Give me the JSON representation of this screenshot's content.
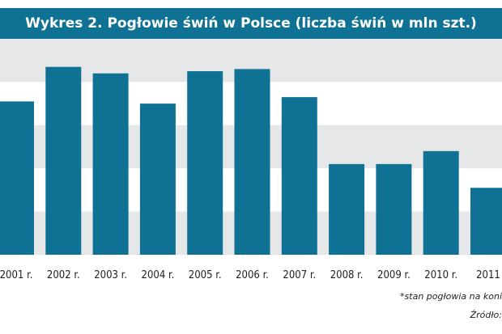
{
  "chart_data": {
    "type": "bar",
    "title": "Wykres 2. Pogłowie świń w Polsce (liczba świń w mln szt.)",
    "categories": [
      "2001 r.",
      "2002 r.",
      "2003 r.",
      "2004 r.",
      "2005 r.",
      "2006 r.",
      "2007 r.",
      "2008 r.",
      "2009 r.",
      "2010 r.",
      "2011"
    ],
    "values": [
      17.1,
      18.7,
      18.4,
      17.0,
      18.5,
      18.6,
      17.3,
      14.2,
      14.2,
      14.8,
      13.1
    ],
    "ylim": [
      10,
      20
    ],
    "grid": true,
    "bar_color": "#0f7193",
    "band_color": "#e6e7e9"
  },
  "footnote": "*stan pogłowia na koni",
  "source": "Źródło:"
}
